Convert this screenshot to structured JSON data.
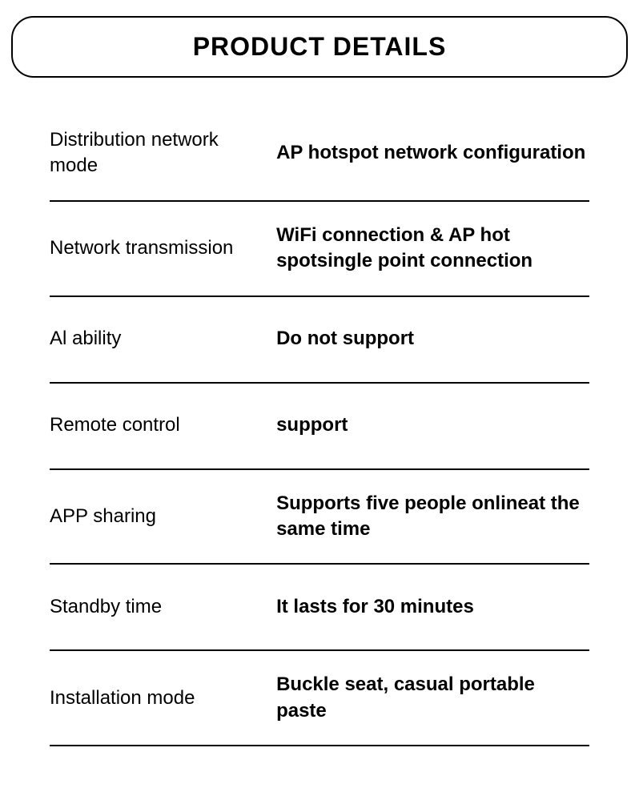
{
  "header": {
    "title": "PRODUCT DETAILS"
  },
  "details": {
    "rows": [
      {
        "label": "Distribution network mode",
        "value": "AP hotspot network configuration"
      },
      {
        "label": "Network transmission",
        "value": "WiFi connection & AP hot spotsingle point connection"
      },
      {
        "label": "Al ability",
        "value": "Do not support"
      },
      {
        "label": "Remote control",
        "value": "support"
      },
      {
        "label": "APP sharing",
        "value": "Supports five people onlineat the same time"
      },
      {
        "label": "Standby time",
        "value": "It lasts for 30 minutes"
      },
      {
        "label": "Installation mode",
        "value": "Buckle seat, casual portable paste"
      }
    ]
  },
  "styling": {
    "type": "table",
    "background_color": "#ffffff",
    "border_color": "#000000",
    "text_color": "#000000",
    "header_border_radius": 28,
    "header_border_width": 2,
    "row_border_width": 2,
    "title_fontsize": 32,
    "title_fontweight": 900,
    "label_fontsize": 24,
    "label_fontweight": 400,
    "value_fontsize": 24,
    "value_fontweight": 700,
    "label_column_width_pct": 42,
    "value_column_width_pct": 58,
    "row_min_height": 108,
    "table_padding_x": 48
  }
}
